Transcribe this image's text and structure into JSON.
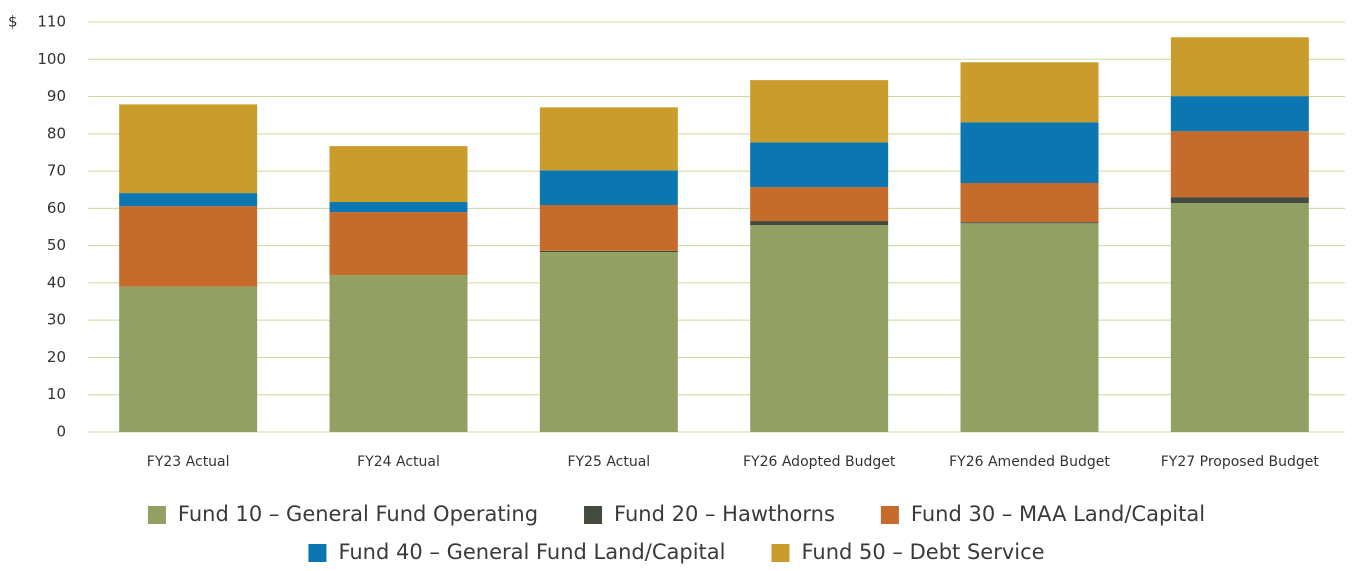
{
  "chart_data": {
    "type": "bar",
    "stacked": true,
    "y_prefix": "$",
    "categories": [
      "FY23 Actual",
      "FY24 Actual",
      "FY25 Actual",
      "FY26 Adopted Budget",
      "FY26 Amended Budget",
      "FY27 Proposed Budget"
    ],
    "series": [
      {
        "name": "Fund 10 – General Fund Operating",
        "color": "#93a064",
        "values": [
          39,
          42.1,
          48.3,
          55.5,
          56.0,
          61.4
        ]
      },
      {
        "name": "Fund 20 – Hawthorns",
        "color": "#434a3e",
        "values": [
          0,
          0,
          0.3,
          1.1,
          0.3,
          1.6
        ]
      },
      {
        "name": "Fund 30 – MAA Land/Capital",
        "color": "#c56b2c",
        "values": [
          21.6,
          16.9,
          12.3,
          9.1,
          10.5,
          17.7
        ]
      },
      {
        "name": "Fund 40 – General Fund Land/Capital",
        "color": "#0b76b0",
        "values": [
          3.5,
          2.7,
          9.3,
          12.0,
          16.3,
          9.4
        ]
      },
      {
        "name": "Fund 50 – Debt Service",
        "color": "#c99c2c",
        "values": [
          23.8,
          15.0,
          16.9,
          16.7,
          16.1,
          15.8
        ]
      }
    ],
    "ylim": [
      0,
      110
    ],
    "yticks": [
      0,
      10,
      20,
      30,
      40,
      50,
      60,
      70,
      80,
      90,
      100,
      110
    ],
    "grid": true
  }
}
